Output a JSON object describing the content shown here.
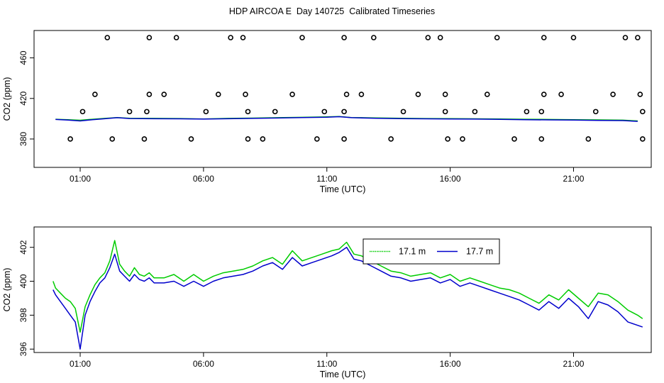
{
  "title": "HDP AIRCOA E  Day 140725  Calibrated Timeseries",
  "colors": {
    "series_17_1": "#00cc00",
    "series_17_7": "#0000cc",
    "points": "#000000"
  },
  "chart_data": [
    {
      "type": "line",
      "ylabel": "CO2 (ppm)",
      "xlabel": "Time (UTC)",
      "xlim_hours": [
        -0.87,
        24.15
      ],
      "ylim": [
        352,
        487
      ],
      "x_tick_values": [
        1,
        6,
        11,
        16,
        21
      ],
      "x_tick_labels": [
        "01:00",
        "06:00",
        "11:00",
        "16:00",
        "21:00"
      ],
      "y_ticks": [
        380,
        420,
        460
      ],
      "markers": {
        "shape": "circle",
        "top_row": {
          "y": 480,
          "x_hours": [
            2.1,
            3.8,
            4.9,
            7.1,
            7.6,
            10.0,
            11.7,
            12.9,
            15.1,
            15.6,
            17.9,
            19.8,
            21.0,
            23.1,
            23.6
          ]
        },
        "upper_row": {
          "y": 424,
          "x_hours": [
            1.6,
            3.8,
            4.4,
            6.6,
            7.7,
            9.6,
            11.8,
            12.4,
            14.7,
            15.8,
            17.5,
            19.8,
            20.5,
            22.6,
            23.7
          ]
        },
        "middle_row": {
          "y": 407,
          "x_hours": [
            1.1,
            3.0,
            3.7,
            6.1,
            7.8,
            8.9,
            10.9,
            11.7,
            14.1,
            15.8,
            17.0,
            19.1,
            19.7,
            21.9,
            23.8
          ]
        },
        "bottom_row": {
          "y": 380,
          "x_hours": [
            0.6,
            2.3,
            3.6,
            5.5,
            7.8,
            8.4,
            10.6,
            11.7,
            13.6,
            15.9,
            16.5,
            18.6,
            19.7,
            21.6,
            23.8
          ]
        }
      },
      "series": [
        {
          "color": "#00cc00",
          "x_hours": [
            0.0,
            0.5,
            1.0,
            1.5,
            2.0,
            2.5,
            3.0,
            4.0,
            5.0,
            6.0,
            7.0,
            8.0,
            9.0,
            10.0,
            11.0,
            11.5,
            12.0,
            13.0,
            14.0,
            15.0,
            16.0,
            17.0,
            18.0,
            19.0,
            20.0,
            21.0,
            22.0,
            23.0,
            23.6
          ],
          "values": [
            399.5,
            399.0,
            398.5,
            399.5,
            400.3,
            401.2,
            400.5,
            400.3,
            400.2,
            399.8,
            400.3,
            400.6,
            401.0,
            401.4,
            401.8,
            402.2,
            401.2,
            400.8,
            400.4,
            400.2,
            400.1,
            399.9,
            399.8,
            399.5,
            399.3,
            399.1,
            398.9,
            398.6,
            397.8
          ]
        },
        {
          "color": "#0000cc",
          "x_hours": [
            0.0,
            0.5,
            1.0,
            1.5,
            2.0,
            2.5,
            3.0,
            4.0,
            5.0,
            6.0,
            7.0,
            8.0,
            9.0,
            10.0,
            11.0,
            11.5,
            12.0,
            13.0,
            14.0,
            15.0,
            16.0,
            17.0,
            18.0,
            19.0,
            20.0,
            21.0,
            22.0,
            23.0,
            23.6
          ],
          "values": [
            399.3,
            398.7,
            397.8,
            399.0,
            400.0,
            401.0,
            400.2,
            400.0,
            399.9,
            399.6,
            400.0,
            400.3,
            400.7,
            401.1,
            401.5,
            402.0,
            401.0,
            400.5,
            400.1,
            399.9,
            399.8,
            399.6,
            399.4,
            399.0,
            398.9,
            398.7,
            398.4,
            398.2,
            397.4
          ]
        }
      ]
    },
    {
      "type": "line",
      "ylabel": "CO2 (ppm)",
      "xlabel": "Time (UTC)",
      "xlim_hours": [
        -0.87,
        24.15
      ],
      "ylim": [
        395.8,
        403.2
      ],
      "x_tick_values": [
        1,
        6,
        11,
        16,
        21
      ],
      "x_tick_labels": [
        "01:00",
        "06:00",
        "11:00",
        "16:00",
        "21:00"
      ],
      "y_ticks": [
        396,
        398,
        400,
        402
      ],
      "legend": {
        "position": "top-center-right",
        "entries": [
          "17.1 m",
          "17.7 m"
        ]
      },
      "series": [
        {
          "name": "17.1 m",
          "color": "#00cc00",
          "x_hours": [
            -0.1,
            0.0,
            0.2,
            0.4,
            0.6,
            0.8,
            1.0,
            1.2,
            1.4,
            1.6,
            1.8,
            2.0,
            2.2,
            2.4,
            2.6,
            2.8,
            3.0,
            3.2,
            3.4,
            3.6,
            3.8,
            4.0,
            4.4,
            4.8,
            5.2,
            5.6,
            6.0,
            6.4,
            6.8,
            7.2,
            7.6,
            8.0,
            8.4,
            8.8,
            9.2,
            9.6,
            10.0,
            10.4,
            10.8,
            11.2,
            11.5,
            11.8,
            12.1,
            12.4,
            12.8,
            13.2,
            13.6,
            14.0,
            14.4,
            14.8,
            15.2,
            15.6,
            16.0,
            16.4,
            16.8,
            17.2,
            17.6,
            18.0,
            18.4,
            18.8,
            19.2,
            19.6,
            20.0,
            20.4,
            20.8,
            21.2,
            21.6,
            22.0,
            22.4,
            22.8,
            23.2,
            23.6,
            23.8
          ],
          "values": [
            400.0,
            399.6,
            399.3,
            399.0,
            398.8,
            398.4,
            397.0,
            398.5,
            399.2,
            399.8,
            400.2,
            400.5,
            401.2,
            402.4,
            401.0,
            400.6,
            400.3,
            400.8,
            400.4,
            400.3,
            400.5,
            400.2,
            400.2,
            400.4,
            400.0,
            400.4,
            400.0,
            400.3,
            400.5,
            400.6,
            400.7,
            400.9,
            401.2,
            401.4,
            401.0,
            401.8,
            401.2,
            401.4,
            401.6,
            401.8,
            401.9,
            402.3,
            401.6,
            401.5,
            401.2,
            400.9,
            400.6,
            400.5,
            400.3,
            400.4,
            400.5,
            400.2,
            400.4,
            400.0,
            400.2,
            400.0,
            399.8,
            399.6,
            399.5,
            399.3,
            399.0,
            398.7,
            399.2,
            398.9,
            399.5,
            399.0,
            398.5,
            399.3,
            399.2,
            398.8,
            398.3,
            398.0,
            397.8
          ]
        },
        {
          "name": "17.7 m",
          "color": "#0000cc",
          "x_hours": [
            -0.1,
            0.0,
            0.2,
            0.4,
            0.6,
            0.8,
            1.0,
            1.2,
            1.4,
            1.6,
            1.8,
            2.0,
            2.2,
            2.4,
            2.6,
            2.8,
            3.0,
            3.2,
            3.4,
            3.6,
            3.8,
            4.0,
            4.4,
            4.8,
            5.2,
            5.6,
            6.0,
            6.4,
            6.8,
            7.2,
            7.6,
            8.0,
            8.4,
            8.8,
            9.2,
            9.6,
            10.0,
            10.4,
            10.8,
            11.2,
            11.5,
            11.8,
            12.1,
            12.4,
            12.8,
            13.2,
            13.6,
            14.0,
            14.4,
            14.8,
            15.2,
            15.6,
            16.0,
            16.4,
            16.8,
            17.2,
            17.6,
            18.0,
            18.4,
            18.8,
            19.2,
            19.6,
            20.0,
            20.4,
            20.8,
            21.2,
            21.6,
            22.0,
            22.4,
            22.8,
            23.2,
            23.6,
            23.8
          ],
          "values": [
            399.5,
            399.2,
            398.8,
            398.4,
            398.0,
            397.6,
            396.0,
            398.0,
            398.8,
            399.4,
            399.9,
            400.2,
            400.8,
            401.6,
            400.6,
            400.3,
            400.0,
            400.4,
            400.1,
            400.0,
            400.2,
            399.9,
            399.9,
            400.0,
            399.7,
            400.0,
            399.7,
            400.0,
            400.2,
            400.3,
            400.4,
            400.6,
            400.9,
            401.1,
            400.7,
            401.4,
            400.9,
            401.1,
            401.3,
            401.5,
            401.7,
            402.0,
            401.3,
            401.2,
            400.9,
            400.6,
            400.3,
            400.2,
            400.0,
            400.1,
            400.2,
            399.9,
            400.1,
            399.7,
            399.9,
            399.7,
            399.5,
            399.3,
            399.1,
            398.9,
            398.6,
            398.3,
            398.8,
            398.4,
            399.0,
            398.5,
            397.8,
            398.8,
            398.6,
            398.2,
            397.6,
            397.4,
            397.3
          ]
        }
      ]
    }
  ]
}
